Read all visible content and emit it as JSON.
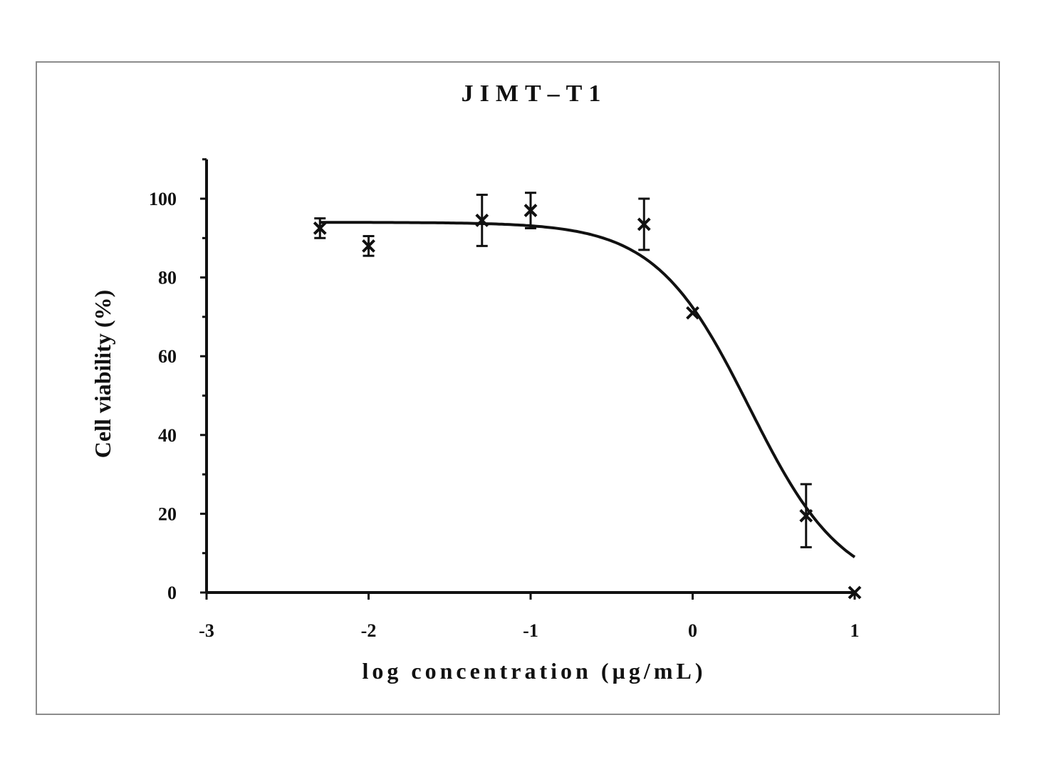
{
  "chart_data": {
    "type": "scatter",
    "title": "JIMT–T1",
    "xlabel": "log concentration (µg/mL)",
    "ylabel": "Cell viability (%)",
    "xlim": [
      -3,
      1
    ],
    "ylim": [
      0,
      110
    ],
    "x_ticks": [
      "-3",
      "-2",
      "-1",
      "0",
      "1"
    ],
    "y_ticks": [
      "0",
      "20",
      "40",
      "60",
      "80",
      "100"
    ],
    "grid": false,
    "legend": "none",
    "series": [
      {
        "marker": "x",
        "x": [
          -2.3,
          -2.0,
          -1.3,
          -1.0,
          -0.3,
          0.0,
          0.7,
          1.0
        ],
        "y": [
          92.5,
          88,
          94.5,
          97,
          93.5,
          71,
          19.5,
          0
        ],
        "error": [
          2.5,
          2.5,
          6.5,
          4.5,
          6.5,
          0,
          8,
          0
        ]
      }
    ],
    "fit_curve": {
      "model": "sigmoidal dose-response",
      "top": 94,
      "bottom": 0,
      "log_ec50": 0.35,
      "hill_slope": -1.5,
      "x_range": [
        -2.3,
        1.0
      ]
    }
  },
  "colors": {
    "frame": "#8c8c8c",
    "ink": "#111111"
  }
}
